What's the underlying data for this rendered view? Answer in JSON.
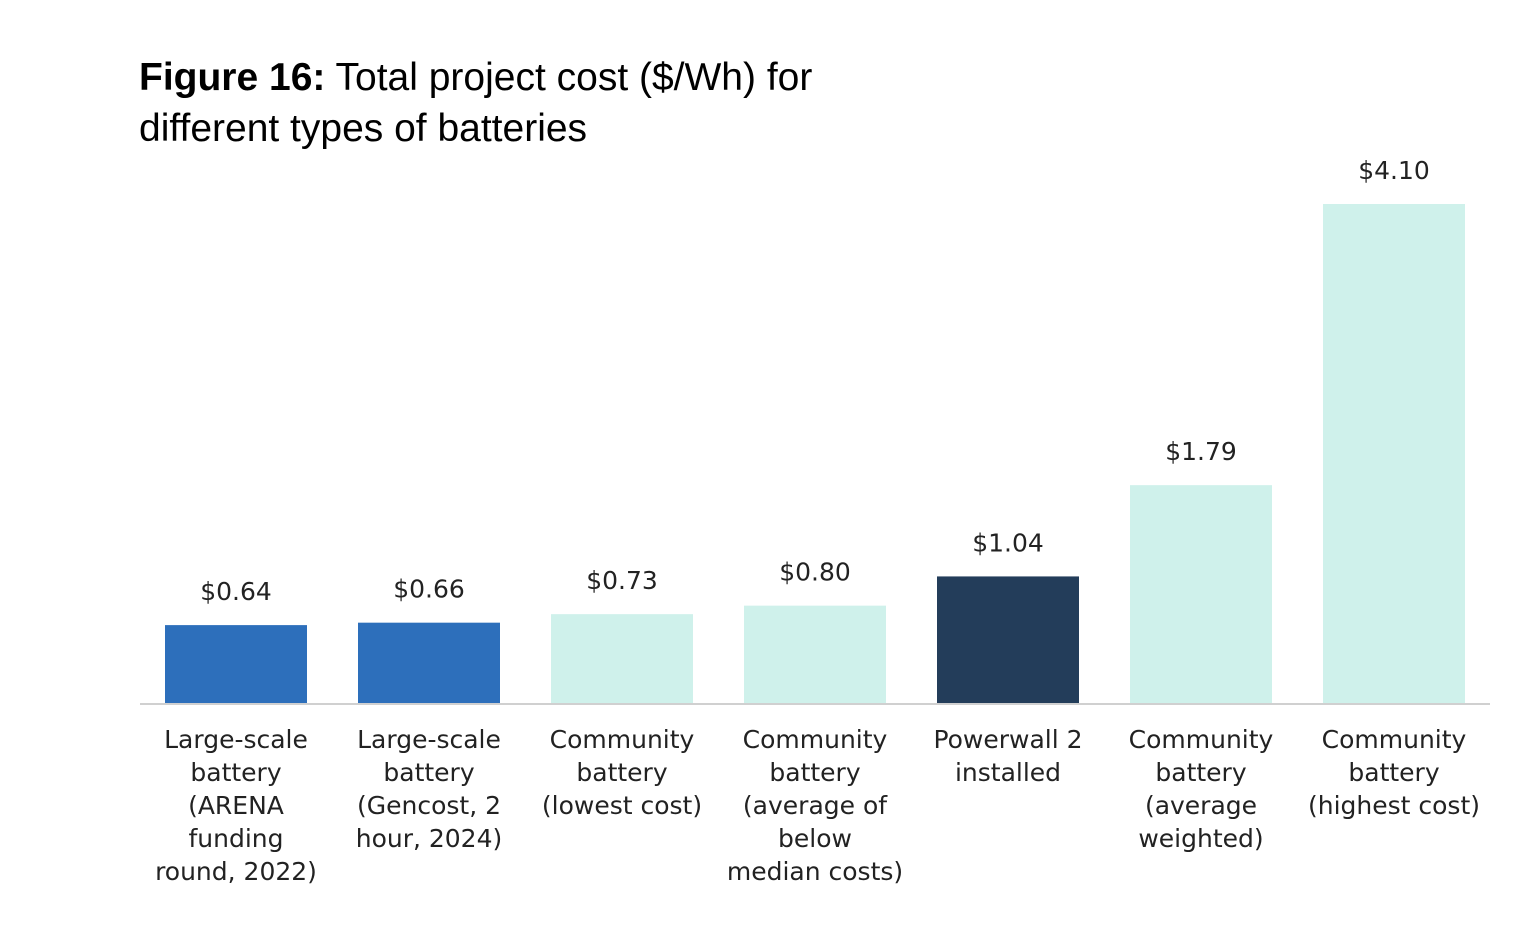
{
  "figure": {
    "label": "Figure 16:",
    "title": "Total project cost ($/Wh) for different types of batteries"
  },
  "chart_data": {
    "type": "bar",
    "title": "Total project cost ($/Wh) for different types of batteries",
    "xlabel": "",
    "ylabel": "",
    "ylim": [
      0,
      4.1
    ],
    "grid": false,
    "legend": "none",
    "categories": [
      "Large-scale battery (ARENA funding round, 2022)",
      "Large-scale battery (Gencost, 2 hour, 2024)",
      "Community battery (lowest cost)",
      "Community battery (average of below median costs)",
      "Powerwall 2 installed",
      "Community battery (average weighted)",
      "Community battery (highest cost)"
    ],
    "category_lines": [
      [
        "Large-scale",
        "battery",
        "(ARENA",
        "funding",
        "round, 2022)"
      ],
      [
        "Large-scale",
        "battery",
        "(Gencost, 2",
        "hour, 2024)"
      ],
      [
        "Community",
        "battery",
        "(lowest cost)"
      ],
      [
        "Community",
        "battery",
        "(average of",
        "below",
        "median costs)"
      ],
      [
        "Powerwall 2",
        "installed"
      ],
      [
        "Community",
        "battery",
        "(average",
        "weighted)"
      ],
      [
        "Community",
        "battery",
        "(highest cost)"
      ]
    ],
    "values": [
      0.64,
      0.66,
      0.73,
      0.8,
      1.04,
      1.79,
      4.1
    ],
    "value_labels": [
      "$0.64",
      "$0.66",
      "$0.73",
      "$0.80",
      "$1.04",
      "$1.79",
      "$4.10"
    ],
    "colors": [
      "#2d6fbb",
      "#2d6fbb",
      "#cff1eb",
      "#cff1eb",
      "#233d5a",
      "#cff1eb",
      "#cff1eb"
    ],
    "axis_color": "#d0d0d0"
  }
}
